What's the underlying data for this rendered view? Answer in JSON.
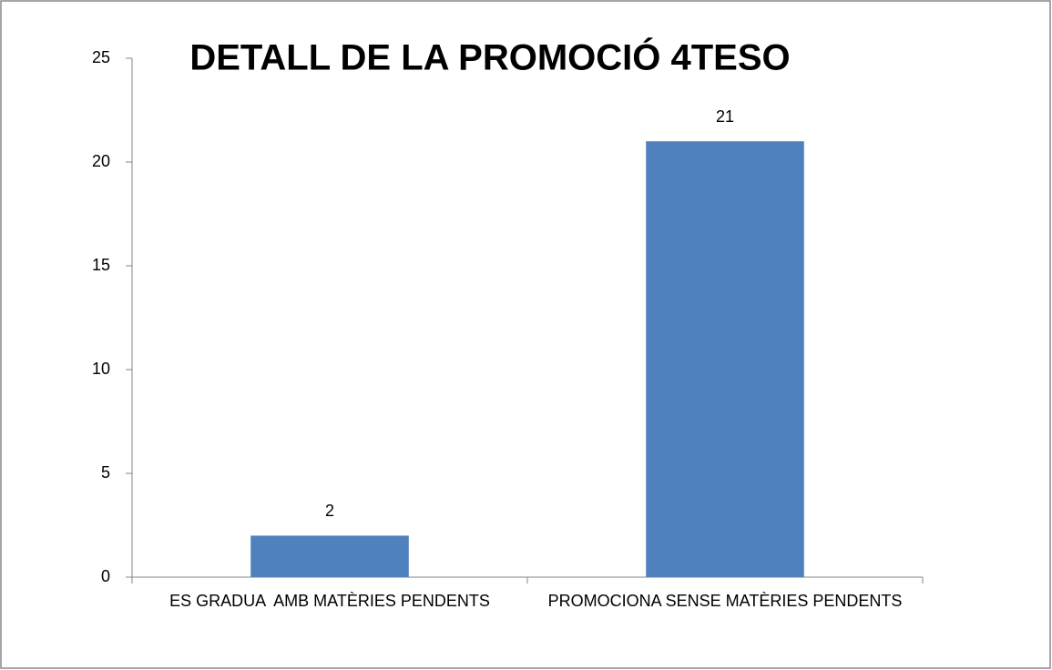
{
  "chart_data": {
    "type": "bar",
    "title": "DETALL DE LA PROMOCIÓ 4TESO",
    "categories": [
      "ES GRADUA  AMB MATÈRIES PENDENTS",
      "PROMOCIONA SENSE MATÈRIES PENDENTS"
    ],
    "values": [
      2,
      21
    ],
    "color": "#4f81bd",
    "ylim": [
      0,
      25
    ],
    "yticks": [
      0,
      5,
      10,
      15,
      20,
      25
    ],
    "grid": false
  }
}
